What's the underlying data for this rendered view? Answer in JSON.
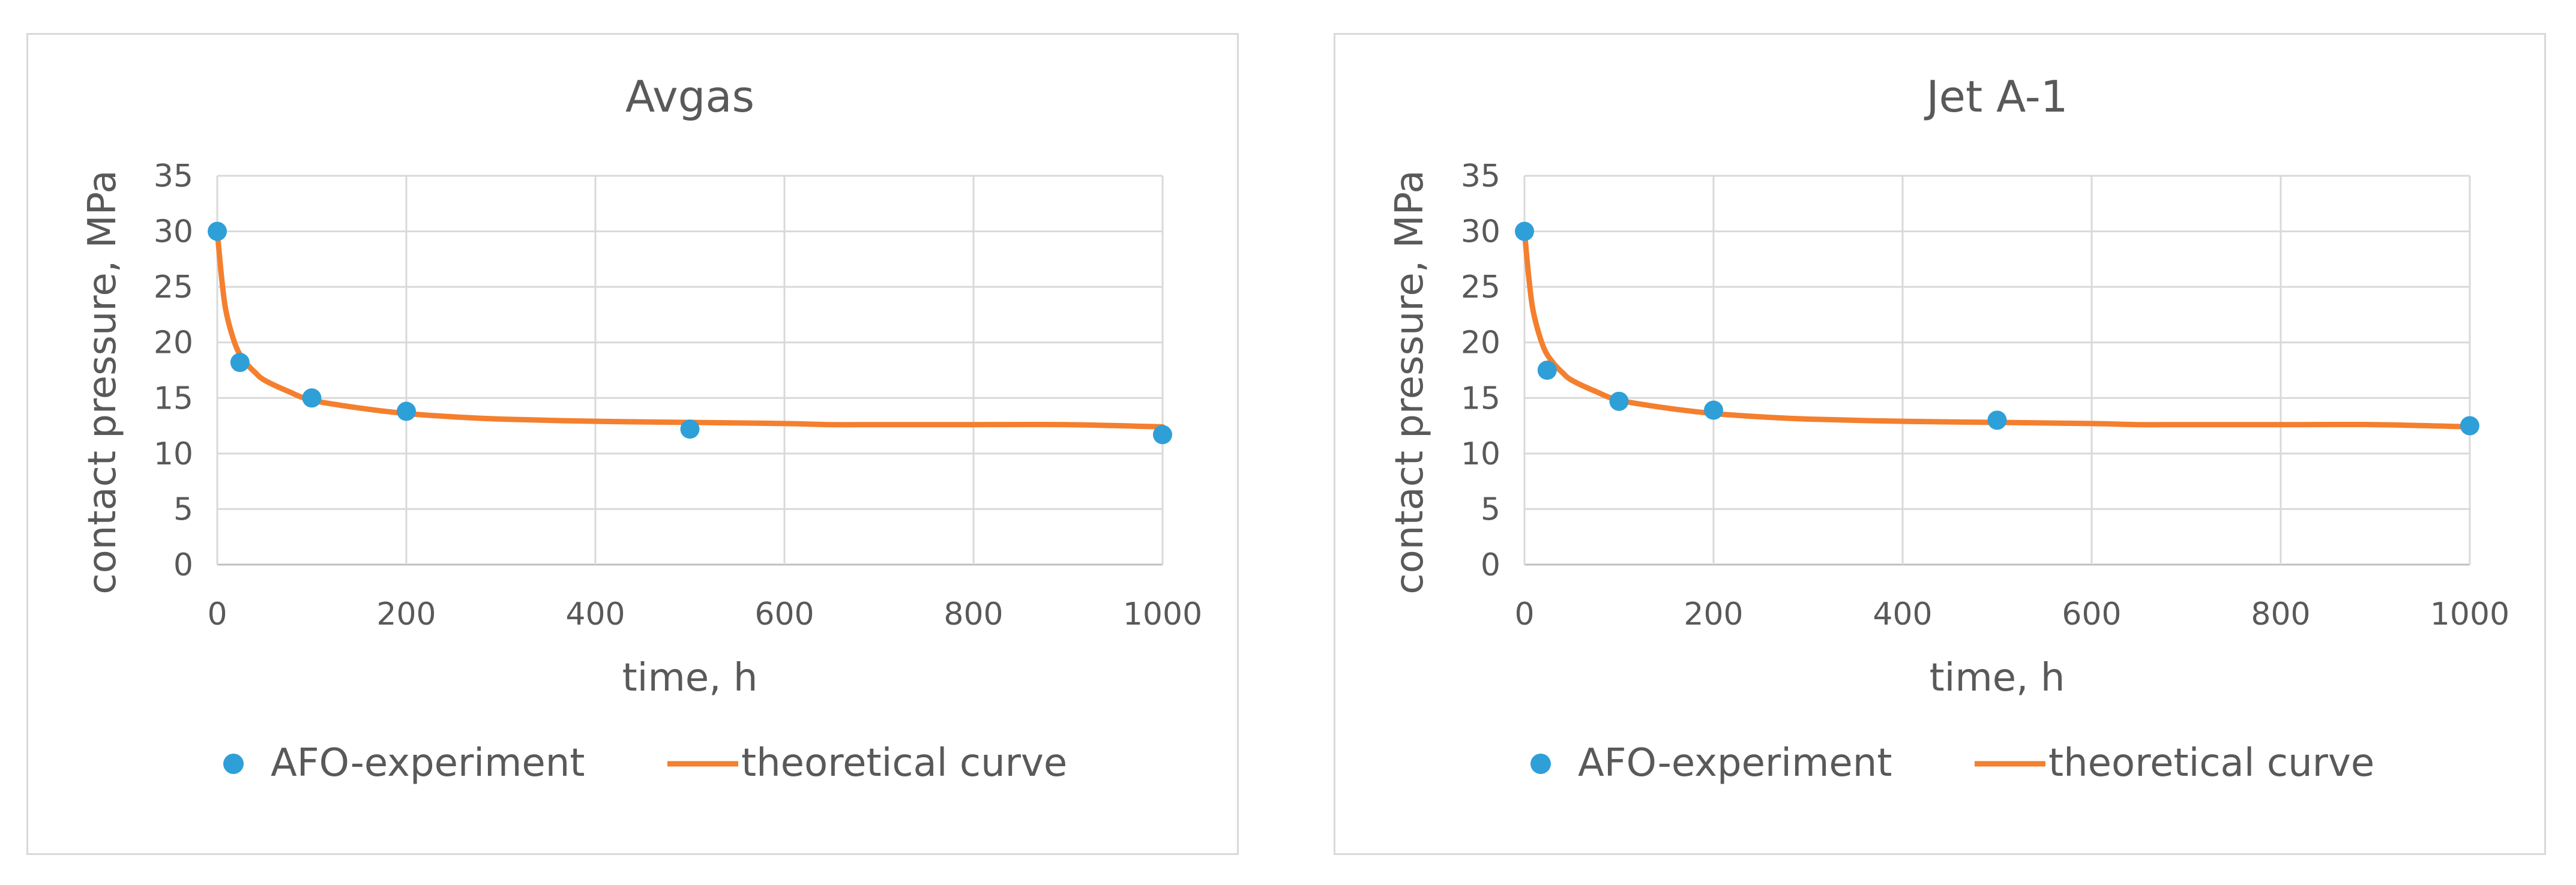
{
  "chart_data": [
    {
      "type": "scatter",
      "title": "Avgas",
      "xlabel": "time, h",
      "ylabel": "contact pressure, MPa",
      "xlim": [
        0,
        1000
      ],
      "ylim": [
        0,
        35
      ],
      "xticks": [
        0,
        200,
        400,
        600,
        800,
        1000
      ],
      "yticks": [
        0,
        5,
        10,
        15,
        20,
        25,
        30,
        35
      ],
      "grid": true,
      "legend_position": "bottom",
      "series": [
        {
          "name": "AFO-experiment",
          "kind": "scatter",
          "color": "#2f9fd8",
          "x": [
            0,
            24,
            100,
            200,
            500,
            1000
          ],
          "y": [
            30,
            18.2,
            15,
            13.8,
            12.2,
            11.7
          ]
        },
        {
          "name": "theoretical curve",
          "kind": "line",
          "color": "#f47f2e",
          "x": [
            0,
            5,
            10,
            20,
            30,
            40,
            50,
            75,
            100,
            150,
            200,
            250,
            300,
            400,
            500,
            600,
            650,
            700,
            800,
            900,
            1000
          ],
          "y": [
            30,
            25.5,
            22.5,
            19.6,
            18.2,
            17.3,
            16.6,
            15.6,
            14.8,
            14.1,
            13.6,
            13.3,
            13.1,
            12.9,
            12.8,
            12.7,
            12.6,
            12.6,
            12.6,
            12.6,
            12.4
          ]
        }
      ]
    },
    {
      "type": "scatter",
      "title": "Jet A-1",
      "xlabel": "time, h",
      "ylabel": "contact pressure, MPa",
      "xlim": [
        0,
        1000
      ],
      "ylim": [
        0,
        35
      ],
      "xticks": [
        0,
        200,
        400,
        600,
        800,
        1000
      ],
      "yticks": [
        0,
        5,
        10,
        15,
        20,
        25,
        30,
        35
      ],
      "grid": true,
      "legend_position": "bottom",
      "series": [
        {
          "name": "AFO-experiment",
          "kind": "scatter",
          "color": "#2f9fd8",
          "x": [
            0,
            24,
            100,
            200,
            500,
            1000
          ],
          "y": [
            30,
            17.5,
            14.7,
            13.9,
            13,
            12.5
          ]
        },
        {
          "name": "theoretical curve",
          "kind": "line",
          "color": "#f47f2e",
          "x": [
            0,
            5,
            10,
            20,
            30,
            40,
            50,
            75,
            100,
            150,
            200,
            250,
            300,
            400,
            500,
            600,
            650,
            700,
            800,
            900,
            1000
          ],
          "y": [
            30,
            25.5,
            22.5,
            19.6,
            18.2,
            17.3,
            16.6,
            15.6,
            14.8,
            14.1,
            13.6,
            13.3,
            13.1,
            12.9,
            12.8,
            12.7,
            12.6,
            12.6,
            12.6,
            12.6,
            12.4
          ]
        }
      ]
    }
  ]
}
